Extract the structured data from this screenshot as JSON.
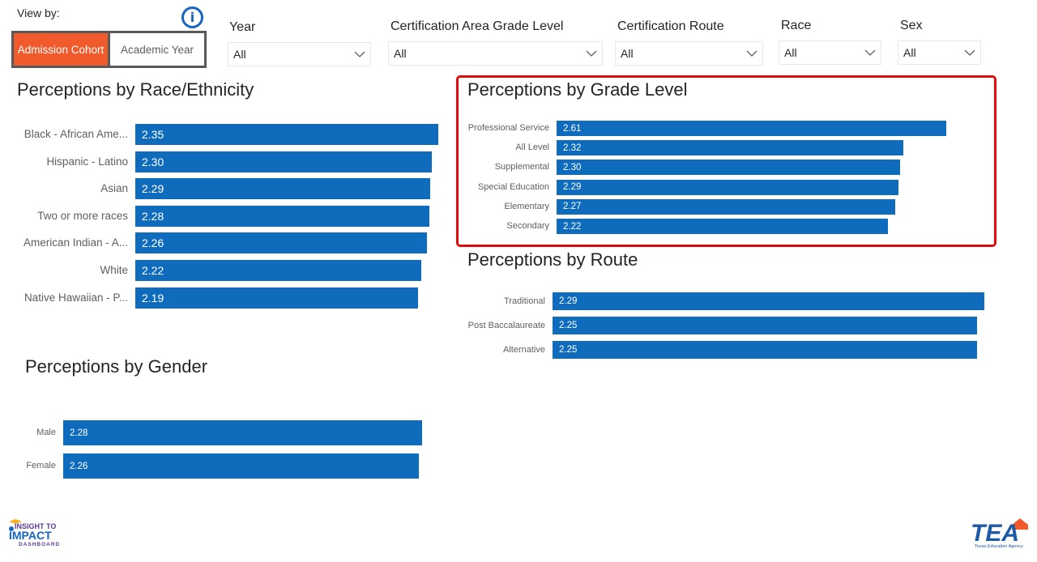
{
  "view_by": {
    "label": "View by:",
    "options": [
      {
        "label": "Admission Cohort",
        "active": true
      },
      {
        "label": "Academic Year",
        "active": false
      }
    ],
    "info_icon": "info-icon"
  },
  "filters": [
    {
      "label": "Year",
      "value": "All"
    },
    {
      "label": "Certification Area Grade Level",
      "value": "All"
    },
    {
      "label": "Certification Route",
      "value": "All"
    },
    {
      "label": "Race",
      "value": "All"
    },
    {
      "label": "Sex",
      "value": "All"
    }
  ],
  "colors": {
    "bar": "#0f6cbd",
    "active_toggle": "#f15a2b",
    "highlight_border": "#e00c0c",
    "info_icon": "#1565c0"
  },
  "charts": {
    "race": {
      "title": "Perceptions by Race/Ethnicity"
    },
    "grade": {
      "title": "Perceptions by Grade Level"
    },
    "route": {
      "title": "Perceptions by Route"
    },
    "gender": {
      "title": "Perceptions by Gender"
    }
  },
  "logos": {
    "left": {
      "line1": "INSIGHT TO",
      "line2": "IMPACT",
      "line3": "DASHBOARD"
    },
    "right": {
      "name": "TEA",
      "subtitle": "Texas Education Agency"
    }
  },
  "chart_data": [
    {
      "type": "bar",
      "orientation": "horizontal",
      "title": "Perceptions by Race/Ethnicity",
      "categories": [
        "Black - African Ame...",
        "Hispanic - Latino",
        "Asian",
        "Two or more races",
        "American Indian - A...",
        "White",
        "Native Hawaiian - P..."
      ],
      "values": [
        2.35,
        2.3,
        2.29,
        2.28,
        2.26,
        2.22,
        2.19
      ],
      "xlabel": "",
      "ylabel": "",
      "data_labels": true,
      "grid": false
    },
    {
      "type": "bar",
      "orientation": "horizontal",
      "title": "Perceptions by Grade Level",
      "categories": [
        "Professional Service",
        "All Level",
        "Supplemental",
        "Special Education",
        "Elementary",
        "Secondary"
      ],
      "values": [
        2.61,
        2.32,
        2.3,
        2.29,
        2.27,
        2.22
      ],
      "xlabel": "",
      "ylabel": "",
      "data_labels": true,
      "grid": false
    },
    {
      "type": "bar",
      "orientation": "horizontal",
      "title": "Perceptions by Route",
      "categories": [
        "Traditional",
        "Post Baccalaureate",
        "Alternative"
      ],
      "values": [
        2.29,
        2.25,
        2.25
      ],
      "xlabel": "",
      "ylabel": "",
      "data_labels": true,
      "grid": false
    },
    {
      "type": "bar",
      "orientation": "horizontal",
      "title": "Perceptions by Gender",
      "categories": [
        "Male",
        "Female"
      ],
      "values": [
        2.28,
        2.26
      ],
      "xlabel": "",
      "ylabel": "",
      "data_labels": true,
      "grid": false
    }
  ]
}
